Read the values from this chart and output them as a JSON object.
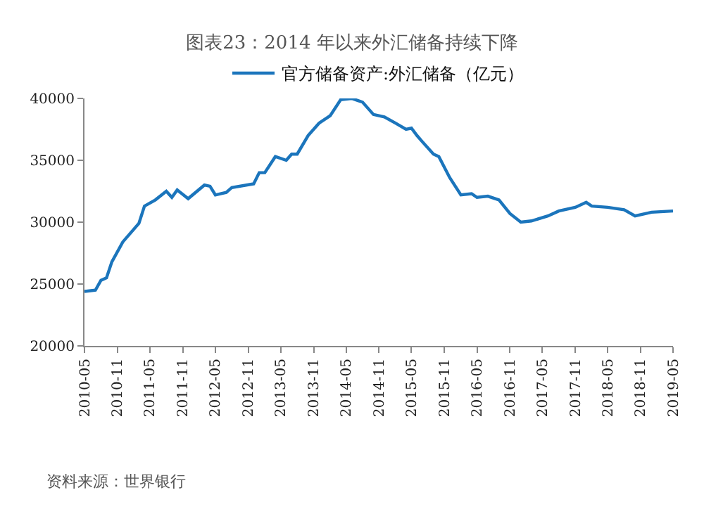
{
  "chart_data": {
    "type": "line",
    "title": "图表23：2014 年以来外汇储备持续下降",
    "x": [
      "2010-05",
      "2010-07",
      "2010-08",
      "2010-09",
      "2010-10",
      "2010-12",
      "2011-03",
      "2011-04",
      "2011-06",
      "2011-08",
      "2011-09",
      "2011-10",
      "2011-12",
      "2012-03",
      "2012-04",
      "2012-05",
      "2012-07",
      "2012-08",
      "2012-12",
      "2013-01",
      "2013-02",
      "2013-04",
      "2013-06",
      "2013-07",
      "2013-08",
      "2013-10",
      "2013-12",
      "2014-02",
      "2014-04",
      "2014-06",
      "2014-08",
      "2014-10",
      "2014-12",
      "2015-02",
      "2015-04",
      "2015-05",
      "2015-06",
      "2015-07",
      "2015-09",
      "2015-10",
      "2015-12",
      "2016-02",
      "2016-04",
      "2016-05",
      "2016-07",
      "2016-09",
      "2016-11",
      "2017-01",
      "2017-03",
      "2017-06",
      "2017-08",
      "2017-11",
      "2018-01",
      "2018-02",
      "2018-05",
      "2018-08",
      "2018-10",
      "2019-01",
      "2019-05"
    ],
    "series": [
      {
        "name": "官方储备资产:外汇储备（亿元）",
        "color": "#1b75bc",
        "values": [
          24400,
          24500,
          25300,
          25500,
          26800,
          28400,
          29900,
          31300,
          31800,
          32500,
          32000,
          32600,
          31900,
          33000,
          32900,
          32200,
          32400,
          32800,
          33100,
          34000,
          34000,
          35300,
          35000,
          35500,
          35500,
          37000,
          38000,
          38600,
          39900,
          40000,
          39700,
          38700,
          38500,
          38000,
          37500,
          37600,
          37000,
          36500,
          35500,
          35300,
          33600,
          32200,
          32300,
          32000,
          32100,
          31800,
          30700,
          30000,
          30100,
          30500,
          30900,
          31200,
          31600,
          31300,
          31200,
          31000,
          30500,
          30800,
          30900
        ]
      }
    ],
    "xlim": [
      "2010-05",
      "2019-05"
    ],
    "xticks": [
      "2010-05",
      "2010-11",
      "2011-05",
      "2011-11",
      "2012-05",
      "2012-11",
      "2013-05",
      "2013-11",
      "2014-05",
      "2014-11",
      "2015-05",
      "2015-11",
      "2016-05",
      "2016-11",
      "2017-05",
      "2017-11",
      "2018-05",
      "2018-11",
      "2019-05"
    ],
    "ylim": [
      20000,
      40000
    ],
    "yticks": [
      20000,
      25000,
      30000,
      35000,
      40000
    ],
    "legend": "top",
    "marker": "none",
    "line_style": "solid",
    "annotations": [
      "资料来源：世界银行"
    ]
  }
}
